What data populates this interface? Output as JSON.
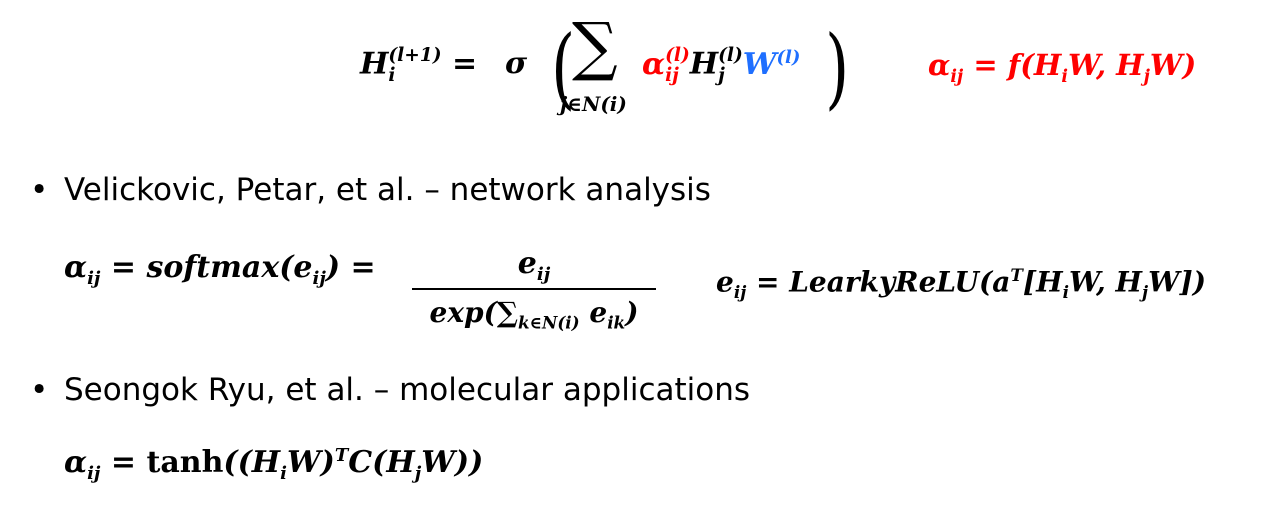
{
  "bullets": [
    {
      "text": "Velickovic, Petar, et al. – network analysis"
    },
    {
      "text": "Seongok Ryu, et al. – molecular applications"
    }
  ],
  "bullet_symbol": "•",
  "colors": {
    "red": "#ff0000",
    "blue": "#1f6fff",
    "text": "#000000"
  },
  "equations": {
    "eq1": {
      "H": "H",
      "i": "i",
      "sup": "(l+1)",
      "eq": "=",
      "sigma": "σ",
      "sum": "∑",
      "sum_sub": "j∈N(i)",
      "alpha": "α",
      "ij_sup": "(l)",
      "ij": "ij",
      "Hj": "H",
      "j": "j",
      "Hj_sup": "(l)",
      "W": "W",
      "W_sup": "(l)"
    },
    "eq2": {
      "text": "α",
      "sub": "ij",
      "rest": " = f(H",
      "i": "i",
      "mid": "W, H",
      "j": "j",
      "end": "W)"
    },
    "eq3": {
      "lhs": "α",
      "lhs_sub": "ij",
      "mid": " = softmax(e",
      "mid_sub": "ij",
      "close": ") ="
    },
    "frac": {
      "num": "e",
      "num_sub": "ij",
      "den": "exp(∑",
      "den_sub": "k∈N(i)",
      "den_e": " e",
      "den_e_sub": "ik",
      "den_close": ")"
    },
    "eq4": {
      "e": "e",
      "e_sub": "ij",
      "mid": " = LearkyReLU(a",
      "sup": "T",
      "br": "[H",
      "i": "i",
      "w1": "W, H",
      "j": "j",
      "w2": "W])"
    },
    "eq5": {
      "alpha": "α",
      "sub": "ij",
      "eq": " = ",
      "tanh": "tanh",
      "open": "((H",
      "i": "i",
      "w": "W)",
      "sup": "T",
      "c": "C(H",
      "j": "j",
      "end": "W))"
    }
  }
}
